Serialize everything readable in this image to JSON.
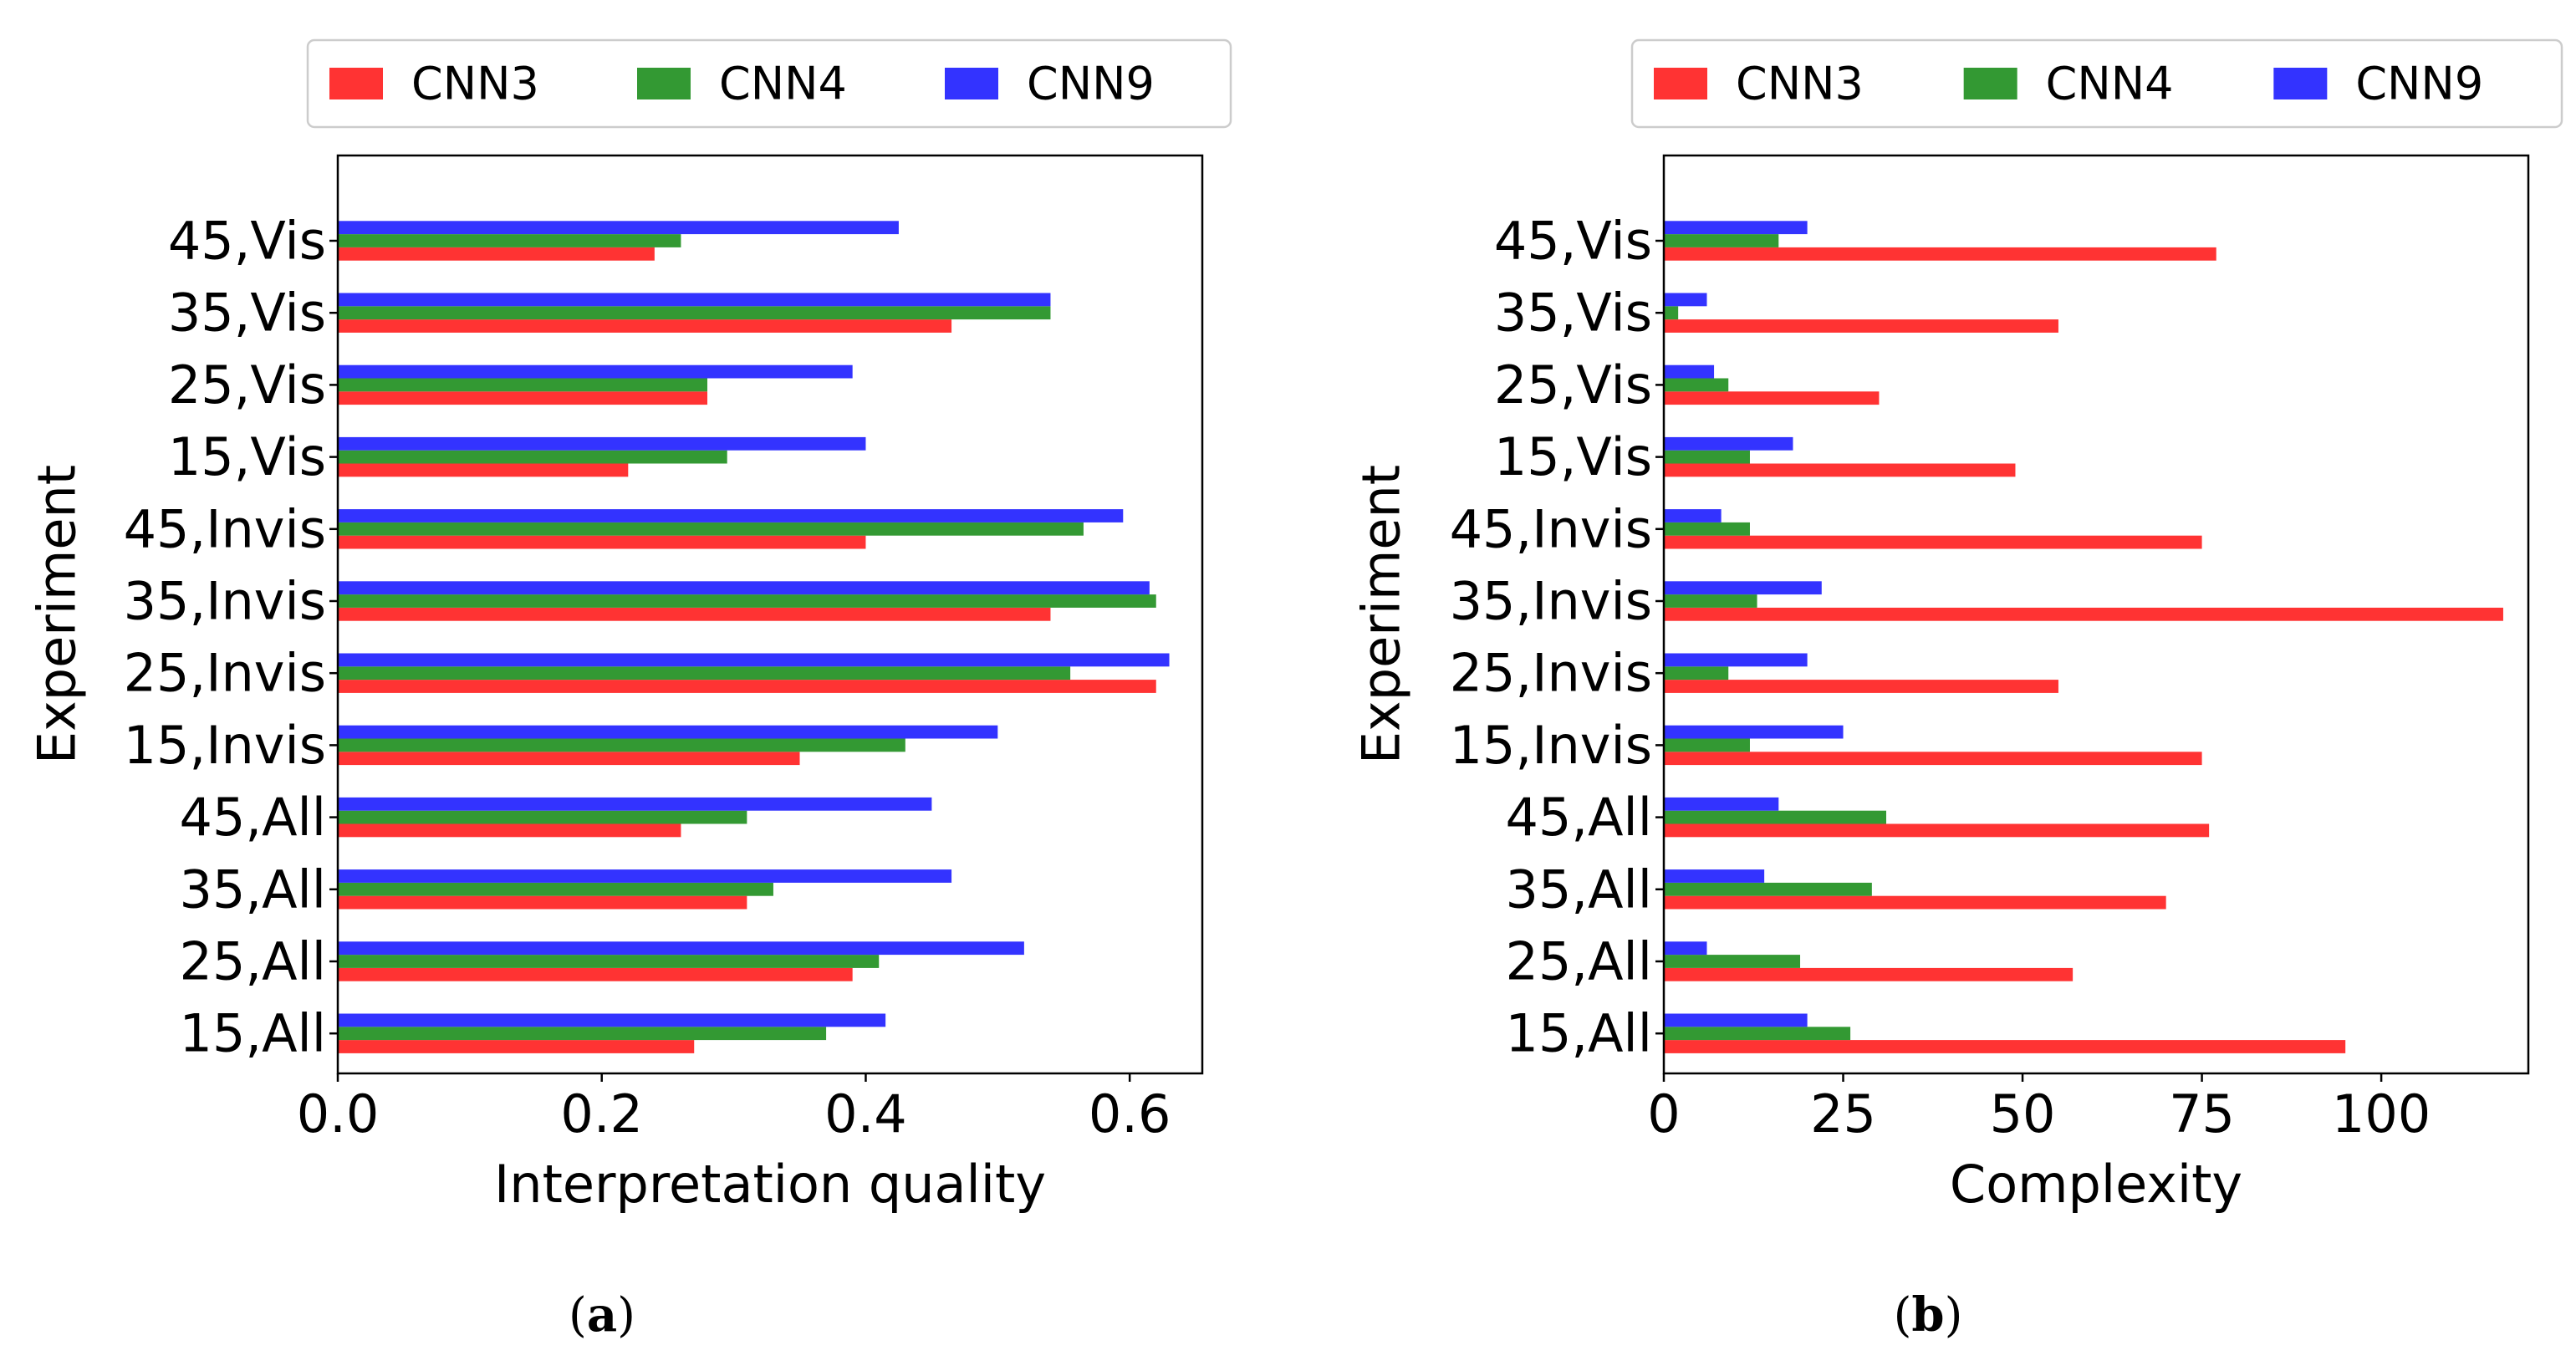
{
  "chart_data": [
    {
      "type": "bar",
      "orientation": "horizontal",
      "panel_label": "(a)",
      "xlabel": "Interpretation quality",
      "ylabel": "Experiment",
      "xlim": [
        0,
        0.655
      ],
      "xticks": [
        0.0,
        0.2,
        0.4,
        0.6
      ],
      "xtick_labels": [
        "0.0",
        "0.2",
        "0.4",
        "0.6"
      ],
      "legend_position": "top",
      "categories": [
        "15,All",
        "25,All",
        "35,All",
        "45,All",
        "15,Invis",
        "25,Invis",
        "35,Invis",
        "45,Invis",
        "15,Vis",
        "25,Vis",
        "35,Vis",
        "45,Vis"
      ],
      "series": [
        {
          "name": "CNN3",
          "color": "#ff3333",
          "values": [
            0.27,
            0.39,
            0.31,
            0.26,
            0.35,
            0.62,
            0.54,
            0.4,
            0.22,
            0.28,
            0.465,
            0.24
          ]
        },
        {
          "name": "CNN4",
          "color": "#339933",
          "values": [
            0.37,
            0.41,
            0.33,
            0.31,
            0.43,
            0.555,
            0.62,
            0.565,
            0.295,
            0.28,
            0.54,
            0.26
          ]
        },
        {
          "name": "CNN9",
          "color": "#3333ff",
          "values": [
            0.415,
            0.52,
            0.465,
            0.45,
            0.5,
            0.63,
            0.615,
            0.595,
            0.4,
            0.39,
            0.54,
            0.425
          ]
        }
      ]
    },
    {
      "type": "bar",
      "orientation": "horizontal",
      "panel_label": "(b)",
      "xlabel": "Complexity",
      "ylabel": "Experiment",
      "xlim": [
        0,
        120.5
      ],
      "xticks": [
        0,
        25,
        50,
        75,
        100
      ],
      "xtick_labels": [
        "0",
        "25",
        "50",
        "75",
        "100"
      ],
      "legend_position": "top",
      "categories": [
        "15,All",
        "25,All",
        "35,All",
        "45,All",
        "15,Invis",
        "25,Invis",
        "35,Invis",
        "45,Invis",
        "15,Vis",
        "25,Vis",
        "35,Vis",
        "45,Vis"
      ],
      "series": [
        {
          "name": "CNN3",
          "color": "#ff3333",
          "values": [
            95,
            57,
            70,
            76,
            75,
            55,
            117,
            75,
            49,
            30,
            55,
            77
          ]
        },
        {
          "name": "CNN4",
          "color": "#339933",
          "values": [
            26,
            19,
            29,
            31,
            12,
            9,
            13,
            12,
            12,
            9,
            2,
            16
          ]
        },
        {
          "name": "CNN9",
          "color": "#3333ff",
          "values": [
            20,
            6,
            14,
            16,
            25,
            20,
            22,
            8,
            18,
            7,
            6,
            20
          ]
        }
      ]
    }
  ]
}
